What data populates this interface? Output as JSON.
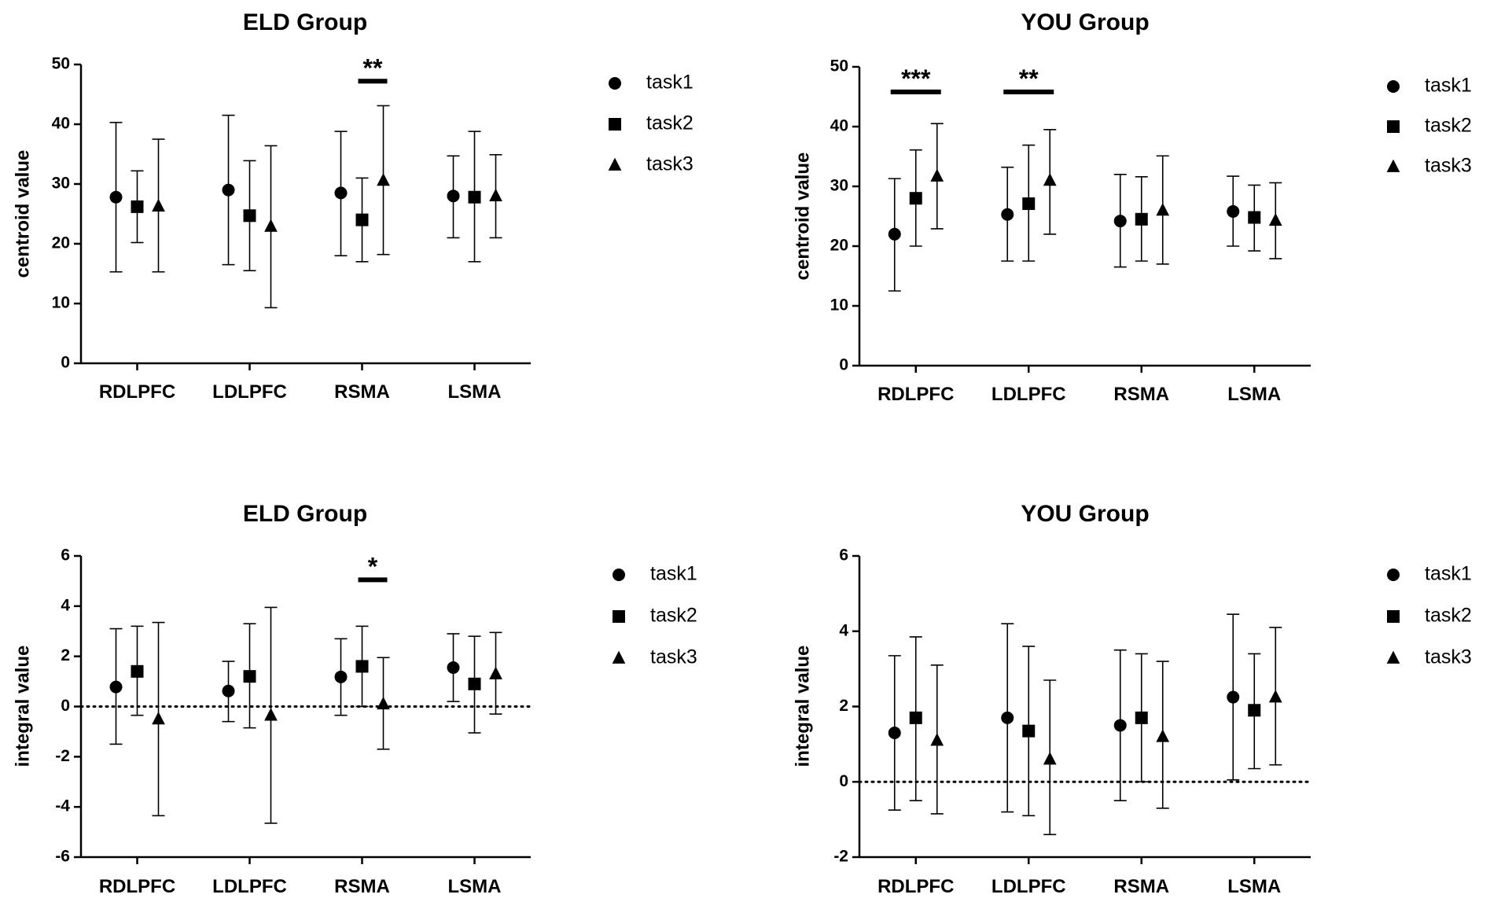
{
  "chart_data": [
    {
      "type": "scatter",
      "title": "ELD Group",
      "ylabel": "centroid value",
      "xlabel": "",
      "ylim": [
        0,
        50
      ],
      "yticks": [
        0,
        10,
        20,
        30,
        40,
        50
      ],
      "categories": [
        "RDLPFC",
        "LDLPFC",
        "RSMA",
        "LSMA"
      ],
      "legend": [
        "task1",
        "task2",
        "task3"
      ],
      "legend_position": "right",
      "reference_line": null,
      "series": [
        {
          "name": "task1",
          "marker": "circle",
          "values": [
            27.8,
            29.0,
            28.5,
            28.0
          ],
          "lower": [
            15.3,
            16.5,
            18.0,
            21.0
          ],
          "upper": [
            40.3,
            41.5,
            38.8,
            34.7
          ]
        },
        {
          "name": "task2",
          "marker": "square",
          "values": [
            26.2,
            24.7,
            24.0,
            27.8
          ],
          "lower": [
            20.2,
            15.5,
            17.0,
            17.0
          ],
          "upper": [
            32.2,
            33.9,
            31.0,
            38.8
          ]
        },
        {
          "name": "task3",
          "marker": "triangle",
          "values": [
            26.3,
            22.9,
            30.6,
            28.0
          ],
          "lower": [
            15.3,
            9.3,
            18.2,
            21.0
          ],
          "upper": [
            37.5,
            36.4,
            43.1,
            34.9
          ]
        }
      ],
      "annotations": [
        {
          "text": "**",
          "category": "RSMA",
          "from_series": "task2",
          "to_series": "task3",
          "y": 47.2
        }
      ]
    },
    {
      "type": "scatter",
      "title": "YOU Group",
      "ylabel": "centroid value",
      "xlabel": "",
      "ylim": [
        0,
        50
      ],
      "yticks": [
        0,
        10,
        20,
        30,
        40,
        50
      ],
      "categories": [
        "RDLPFC",
        "LDLPFC",
        "RSMA",
        "LSMA"
      ],
      "legend": [
        "task1",
        "task2",
        "task3"
      ],
      "legend_position": "right",
      "reference_line": null,
      "series": [
        {
          "name": "task1",
          "marker": "circle",
          "values": [
            22.0,
            25.3,
            24.2,
            25.8
          ],
          "lower": [
            12.5,
            17.5,
            16.5,
            20.0
          ],
          "upper": [
            31.3,
            33.2,
            32.0,
            31.7
          ]
        },
        {
          "name": "task2",
          "marker": "square",
          "values": [
            28.0,
            27.1,
            24.5,
            24.8
          ],
          "lower": [
            20.0,
            17.5,
            17.5,
            19.2
          ],
          "upper": [
            36.1,
            36.9,
            31.6,
            30.2
          ]
        },
        {
          "name": "task3",
          "marker": "triangle",
          "values": [
            31.7,
            31.0,
            26.0,
            24.3
          ],
          "lower": [
            22.9,
            22.0,
            17.0,
            17.9
          ],
          "upper": [
            40.5,
            39.5,
            35.1,
            30.6
          ]
        }
      ],
      "annotations": [
        {
          "text": "***",
          "category": "RDLPFC",
          "from_series": "task1",
          "to_series": "task3",
          "y": 45.8
        },
        {
          "text": "**",
          "category": "LDLPFC",
          "from_series": "task1",
          "to_series": "task3",
          "y": 45.8
        }
      ]
    },
    {
      "type": "scatter",
      "title": "ELD Group",
      "ylabel": "integral value",
      "xlabel": "",
      "ylim": [
        -6,
        6
      ],
      "yticks": [
        -6,
        -4,
        -2,
        0,
        2,
        4,
        6
      ],
      "categories": [
        "RDLPFC",
        "LDLPFC",
        "RSMA",
        "LSMA"
      ],
      "legend": [
        "task1",
        "task2",
        "task3"
      ],
      "legend_position": "right",
      "reference_line": 0,
      "series": [
        {
          "name": "task1",
          "marker": "circle",
          "values": [
            0.78,
            0.62,
            1.18,
            1.55
          ],
          "lower": [
            -1.5,
            -0.6,
            -0.35,
            0.2
          ],
          "upper": [
            3.1,
            1.8,
            2.7,
            2.9
          ]
        },
        {
          "name": "task2",
          "marker": "square",
          "values": [
            1.4,
            1.2,
            1.6,
            0.9
          ],
          "lower": [
            -0.35,
            -0.85,
            0.0,
            -1.05
          ],
          "upper": [
            3.2,
            3.3,
            3.2,
            2.8
          ]
        },
        {
          "name": "task3",
          "marker": "triangle",
          "values": [
            -0.5,
            -0.35,
            0.1,
            1.3
          ],
          "lower": [
            -4.35,
            -4.65,
            -1.7,
            -0.3
          ],
          "upper": [
            3.35,
            3.95,
            1.95,
            2.95
          ]
        }
      ],
      "annotations": [
        {
          "text": "*",
          "category": "RSMA",
          "from_series": "task2",
          "to_series": "task3",
          "y": 5.05
        }
      ]
    },
    {
      "type": "scatter",
      "title": "YOU Group",
      "ylabel": "integral value",
      "xlabel": "",
      "ylim": [
        -2,
        6
      ],
      "yticks": [
        -2,
        0,
        2,
        4,
        6
      ],
      "categories": [
        "RDLPFC",
        "LDLPFC",
        "RSMA",
        "LSMA"
      ],
      "legend": [
        "task1",
        "task2",
        "task3"
      ],
      "legend_position": "right",
      "reference_line": 0,
      "series": [
        {
          "name": "task1",
          "marker": "circle",
          "values": [
            1.3,
            1.7,
            1.5,
            2.25
          ],
          "lower": [
            -0.75,
            -0.8,
            -0.5,
            0.05
          ],
          "upper": [
            3.35,
            4.2,
            3.5,
            4.45
          ]
        },
        {
          "name": "task2",
          "marker": "square",
          "values": [
            1.7,
            1.35,
            1.7,
            1.9
          ],
          "lower": [
            -0.5,
            -0.9,
            0.0,
            0.35
          ],
          "upper": [
            3.85,
            3.6,
            3.4,
            3.4
          ]
        },
        {
          "name": "task3",
          "marker": "triangle",
          "values": [
            1.1,
            0.6,
            1.2,
            2.25
          ],
          "lower": [
            -0.85,
            -1.4,
            -0.7,
            0.45
          ],
          "upper": [
            3.1,
            2.7,
            3.2,
            4.1
          ]
        }
      ],
      "annotations": []
    }
  ]
}
